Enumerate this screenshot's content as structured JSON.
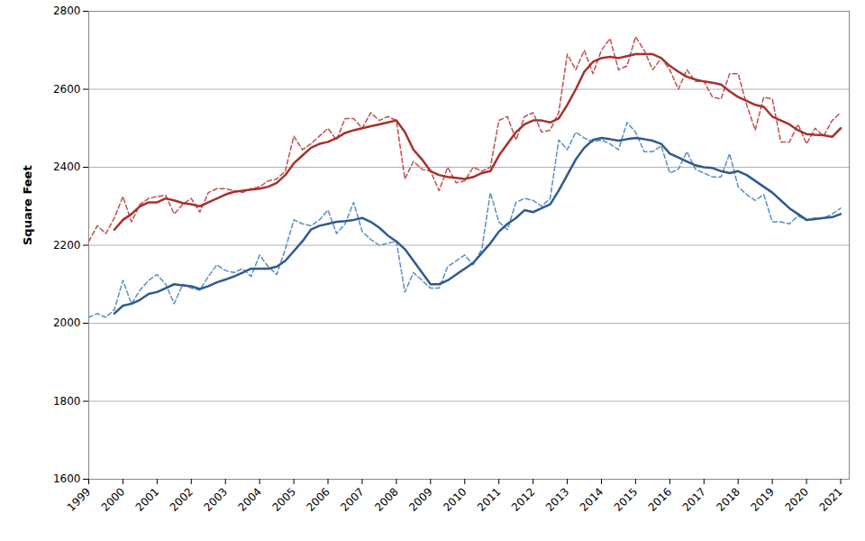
{
  "chart_data": {
    "type": "line",
    "y_label": "Square Feet",
    "x": [
      1999,
      1999.25,
      1999.5,
      1999.75,
      2000,
      2000.25,
      2000.5,
      2000.75,
      2001,
      2001.25,
      2001.5,
      2001.75,
      2002,
      2002.25,
      2002.5,
      2002.75,
      2003,
      2003.25,
      2003.5,
      2003.75,
      2004,
      2004.25,
      2004.5,
      2004.75,
      2005,
      2005.25,
      2005.5,
      2005.75,
      2006,
      2006.25,
      2006.5,
      2006.75,
      2007,
      2007.25,
      2007.5,
      2007.75,
      2008,
      2008.25,
      2008.5,
      2008.75,
      2009,
      2009.25,
      2009.5,
      2009.75,
      2010,
      2010.25,
      2010.5,
      2010.75,
      2011,
      2011.25,
      2011.5,
      2011.75,
      2012,
      2012.25,
      2012.5,
      2012.75,
      2013,
      2013.25,
      2013.5,
      2013.75,
      2014,
      2014.25,
      2014.5,
      2014.75,
      2015,
      2015.25,
      2015.5,
      2015.75,
      2016,
      2016.25,
      2016.5,
      2016.75,
      2017,
      2017.25,
      2017.5,
      2017.75,
      2018,
      2018.25,
      2018.5,
      2018.75,
      2019,
      2019.25,
      2019.5,
      2019.75,
      2020,
      2020.25,
      2020.5,
      2020.75,
      2021
    ],
    "series": [
      {
        "color": "#c0504d",
        "line_style": "dashed",
        "values": [
          2210,
          2250,
          2230,
          2270,
          2325,
          2260,
          2305,
          2320,
          2325,
          2328,
          2280,
          2305,
          2320,
          2285,
          2335,
          2345,
          2345,
          2340,
          2335,
          2345,
          2350,
          2365,
          2370,
          2390,
          2480,
          2445,
          2460,
          2480,
          2500,
          2470,
          2525,
          2525,
          2500,
          2540,
          2520,
          2530,
          2520,
          2370,
          2415,
          2395,
          2390,
          2340,
          2400,
          2360,
          2365,
          2400,
          2390,
          2400,
          2520,
          2530,
          2470,
          2530,
          2540,
          2490,
          2495,
          2540,
          2690,
          2650,
          2700,
          2640,
          2700,
          2730,
          2650,
          2660,
          2735,
          2700,
          2650,
          2680,
          2650,
          2600,
          2650,
          2620,
          2620,
          2580,
          2575,
          2640,
          2640,
          2560,
          2495,
          2580,
          2575,
          2465,
          2465,
          2510,
          2460,
          2500,
          2480,
          2520,
          2540
        ]
      },
      {
        "color": "#a5322d",
        "line_style": "solid",
        "values": [
          null,
          null,
          null,
          2240,
          2265,
          2280,
          2300,
          2310,
          2310,
          2320,
          2315,
          2308,
          2305,
          2300,
          2310,
          2320,
          2330,
          2337,
          2340,
          2343,
          2345,
          2350,
          2360,
          2380,
          2410,
          2430,
          2450,
          2460,
          2465,
          2475,
          2488,
          2495,
          2500,
          2505,
          2510,
          2515,
          2520,
          2490,
          2445,
          2420,
          2390,
          2380,
          2375,
          2373,
          2370,
          2375,
          2385,
          2390,
          2430,
          2460,
          2490,
          2510,
          2520,
          2520,
          2515,
          2525,
          2560,
          2600,
          2645,
          2670,
          2680,
          2683,
          2680,
          2685,
          2690,
          2690,
          2690,
          2680,
          2660,
          2645,
          2632,
          2625,
          2620,
          2617,
          2612,
          2595,
          2580,
          2570,
          2560,
          2555,
          2530,
          2520,
          2510,
          2495,
          2485,
          2483,
          2482,
          2478,
          2500
        ]
      },
      {
        "color": "#5b8ec4",
        "line_style": "dashed",
        "values": [
          2015,
          2025,
          2015,
          2035,
          2110,
          2050,
          2085,
          2110,
          2125,
          2100,
          2050,
          2100,
          2090,
          2085,
          2120,
          2150,
          2135,
          2130,
          2140,
          2120,
          2175,
          2145,
          2125,
          2190,
          2265,
          2255,
          2250,
          2265,
          2290,
          2230,
          2255,
          2310,
          2235,
          2215,
          2200,
          2205,
          2210,
          2080,
          2130,
          2110,
          2090,
          2090,
          2145,
          2160,
          2175,
          2150,
          2190,
          2335,
          2260,
          2240,
          2310,
          2320,
          2315,
          2300,
          2320,
          2470,
          2445,
          2490,
          2475,
          2465,
          2470,
          2460,
          2445,
          2515,
          2490,
          2440,
          2440,
          2455,
          2385,
          2395,
          2440,
          2395,
          2385,
          2375,
          2375,
          2435,
          2350,
          2330,
          2315,
          2330,
          2260,
          2260,
          2255,
          2275,
          2265,
          2270,
          2270,
          2280,
          2295
        ]
      },
      {
        "color": "#2f5a8f",
        "line_style": "solid",
        "values": [
          null,
          null,
          null,
          2025,
          2045,
          2050,
          2060,
          2075,
          2080,
          2090,
          2100,
          2097,
          2095,
          2088,
          2095,
          2105,
          2112,
          2120,
          2130,
          2140,
          2140,
          2140,
          2145,
          2160,
          2185,
          2210,
          2240,
          2250,
          2255,
          2260,
          2262,
          2265,
          2270,
          2260,
          2245,
          2225,
          2210,
          2190,
          2160,
          2130,
          2100,
          2100,
          2110,
          2125,
          2140,
          2155,
          2180,
          2205,
          2235,
          2255,
          2270,
          2290,
          2285,
          2295,
          2305,
          2340,
          2380,
          2420,
          2450,
          2470,
          2475,
          2472,
          2468,
          2472,
          2475,
          2472,
          2468,
          2460,
          2435,
          2425,
          2415,
          2405,
          2400,
          2398,
          2390,
          2385,
          2390,
          2380,
          2365,
          2350,
          2335,
          2315,
          2295,
          2280,
          2265,
          2267,
          2270,
          2272,
          2280
        ]
      }
    ],
    "xlim": [
      1999,
      2021.25
    ],
    "xticks": [
      1999,
      2000,
      2001,
      2002,
      2003,
      2004,
      2005,
      2006,
      2007,
      2008,
      2009,
      2010,
      2011,
      2012,
      2013,
      2014,
      2015,
      2016,
      2017,
      2018,
      2019,
      2020,
      2021
    ],
    "ylim": [
      1600,
      2800
    ],
    "yticks": [
      1600,
      1800,
      2000,
      2200,
      2400,
      2600,
      2800
    ],
    "grid": true
  }
}
